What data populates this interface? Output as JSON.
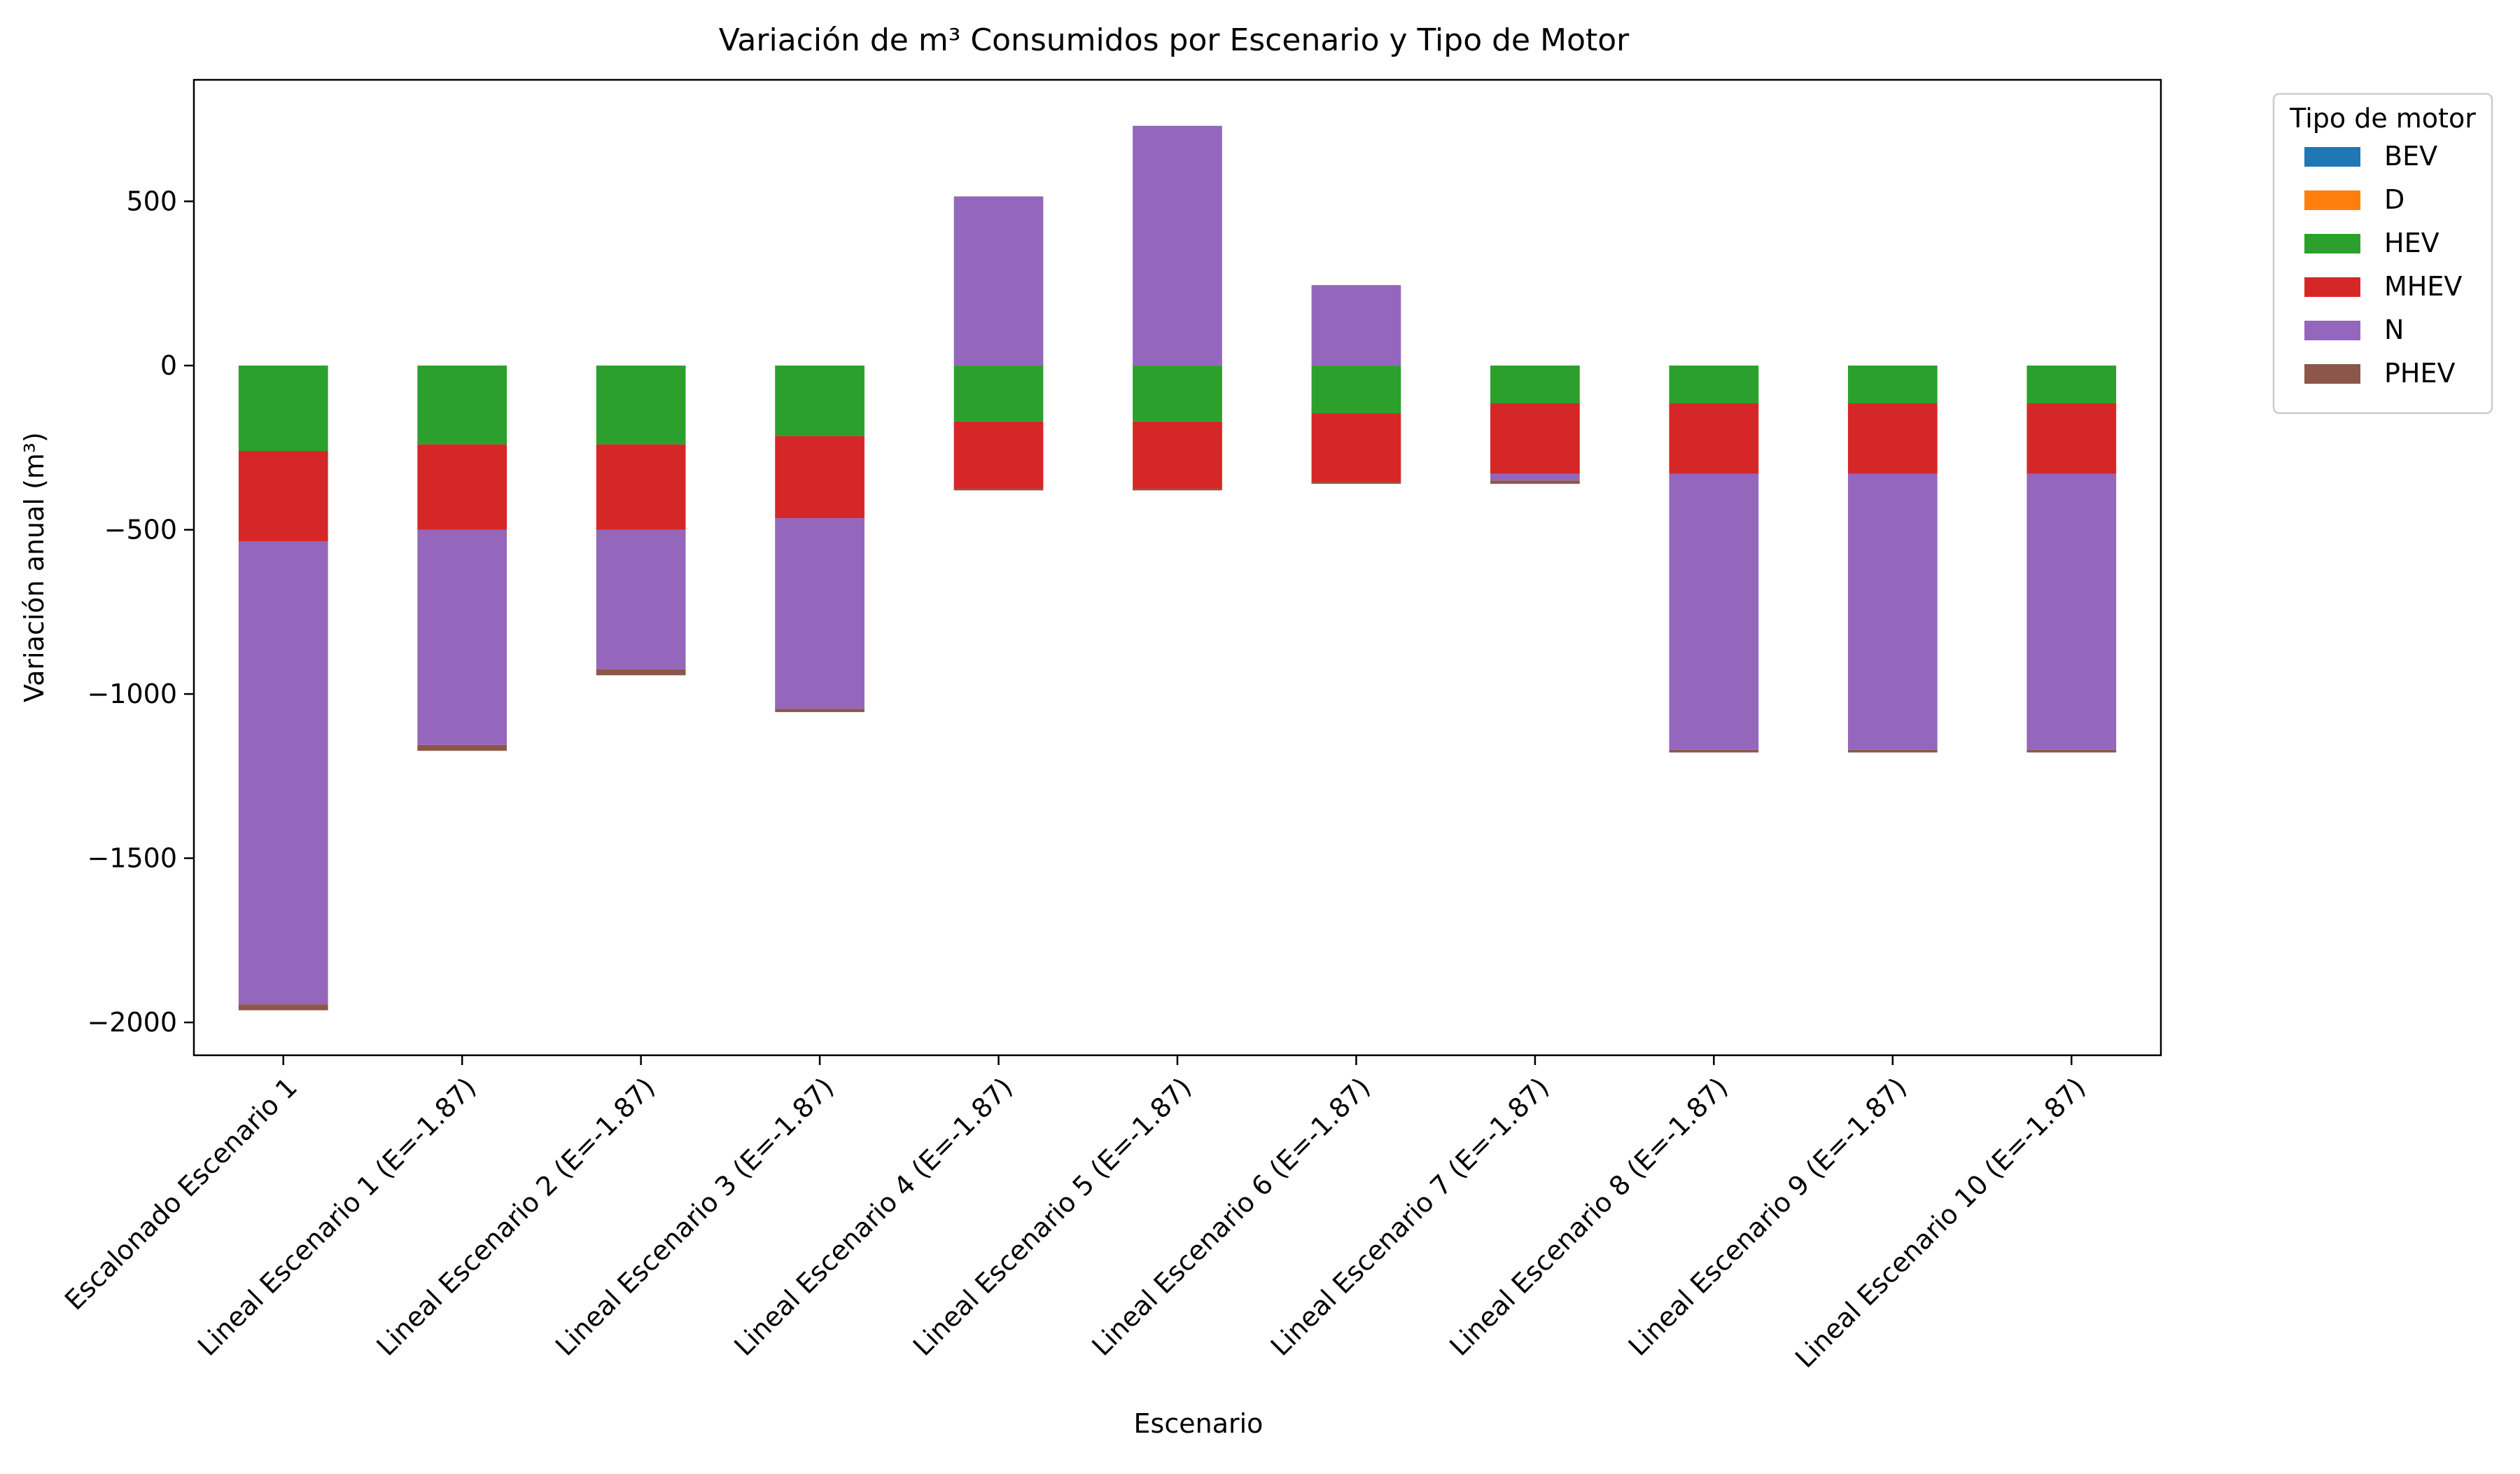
{
  "chart_data": {
    "type": "bar",
    "stacked": true,
    "title": "Variación de m³ Consumidos por Escenario y Tipo de Motor",
    "xlabel": "Escenario",
    "ylabel": "Variación anual (m³)",
    "ylim": [
      -2100,
      870
    ],
    "yticks": [
      500,
      0,
      -500,
      -1000,
      -1500,
      -2000
    ],
    "ytick_labels": [
      "500",
      "0",
      "−500",
      "−1000",
      "−1500",
      "−2000"
    ],
    "grid": false,
    "legend": {
      "title": "Tipo de motor",
      "placement": "outside top-right"
    },
    "categories": [
      "Escalonado Escenario 1",
      "Lineal Escenario 1 (E=-1.87)",
      "Lineal Escenario 2 (E=-1.87)",
      "Lineal Escenario 3 (E=-1.87)",
      "Lineal Escenario 4 (E=-1.87)",
      "Lineal Escenario 5 (E=-1.87)",
      "Lineal Escenario 6 (E=-1.87)",
      "Lineal Escenario 7 (E=-1.87)",
      "Lineal Escenario 8 (E=-1.87)",
      "Lineal Escenario 9 (E=-1.87)",
      "Lineal Escenario 10 (E=-1.87)"
    ],
    "series": [
      {
        "name": "BEV",
        "color": "#1f77b4",
        "values": [
          0,
          0,
          0,
          0,
          0,
          0,
          0,
          0,
          0,
          0,
          0
        ]
      },
      {
        "name": "D",
        "color": "#ff7f0e",
        "values": [
          0,
          0,
          0,
          0,
          0,
          0,
          0,
          0,
          0,
          0,
          0
        ]
      },
      {
        "name": "HEV",
        "color": "#2ca02c",
        "values": [
          -260,
          -240,
          -240,
          -215,
          -170,
          -170,
          -145,
          -115,
          -115,
          -115,
          -115
        ]
      },
      {
        "name": "MHEV",
        "color": "#d62728",
        "values": [
          -275,
          -260,
          -260,
          -250,
          -205,
          -205,
          -210,
          -215,
          -215,
          -215,
          -215
        ]
      },
      {
        "name": "N",
        "color": "#9467bd",
        "values": [
          -1410,
          -655,
          -425,
          -580,
          515,
          730,
          245,
          -20,
          -840,
          -840,
          -840
        ]
      },
      {
        "name": "PHEV",
        "color": "#8c564b",
        "values": [
          -18,
          -18,
          -18,
          -10,
          -5,
          -5,
          -5,
          -10,
          -8,
          -8,
          -8
        ]
      }
    ]
  }
}
